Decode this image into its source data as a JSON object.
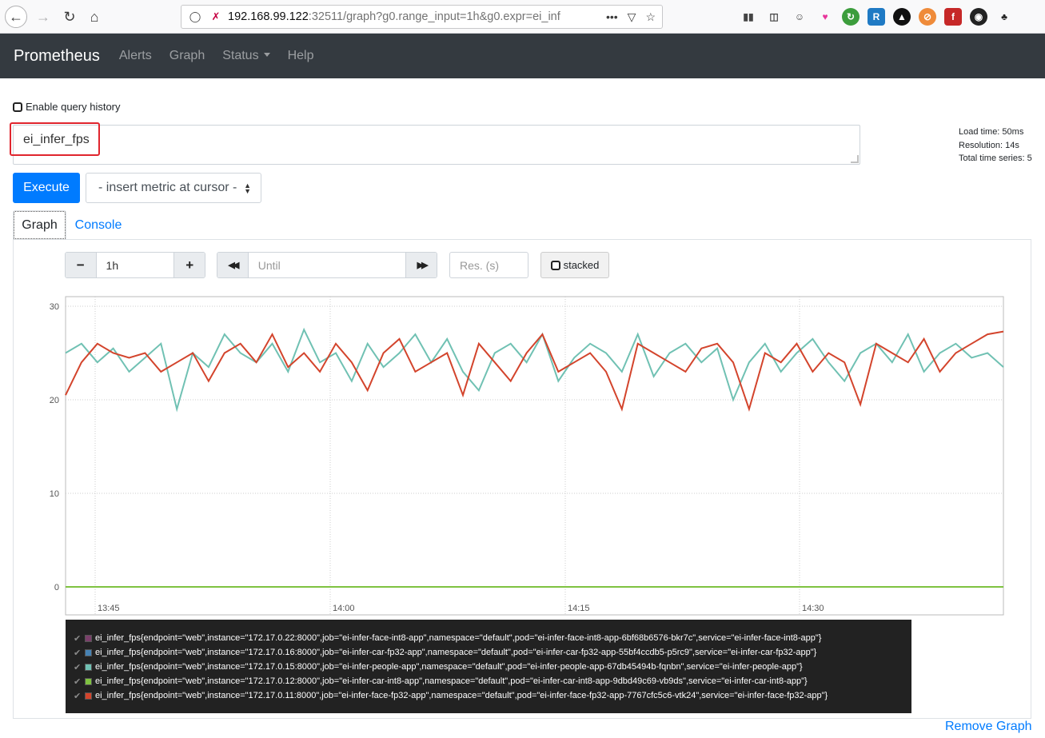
{
  "browser": {
    "url_host": "192.168.99.122",
    "url_rest": ":32511/graph?g0.range_input=1h&g0.expr=ei_inf"
  },
  "navbar": {
    "brand": "Prometheus",
    "links": [
      "Alerts",
      "Graph",
      "Status",
      "Help"
    ]
  },
  "query": {
    "history_label": "Enable query history",
    "expression": "ei_infer_fps",
    "stats": {
      "load_time": "Load time: 50ms",
      "resolution": "Resolution: 14s",
      "total_series": "Total time series: 5"
    },
    "execute_label": "Execute",
    "metric_select": "- insert metric at cursor -"
  },
  "tabs": {
    "graph": "Graph",
    "console": "Console"
  },
  "controls": {
    "minus": "−",
    "range": "1h",
    "plus": "+",
    "rewind": "◀◀",
    "until_placeholder": "Until",
    "forward": "▶▶",
    "res_placeholder": "Res. (s)",
    "stacked_label": "stacked"
  },
  "chart_data": {
    "type": "line",
    "ylim": [
      0,
      30
    ],
    "yticks": [
      "0",
      "10",
      "20",
      "30"
    ],
    "xticks": [
      "13:45",
      "14:00",
      "14:15",
      "14:30"
    ],
    "series": [
      {
        "name": "face-int8",
        "color": "#7b3f6b",
        "values": [
          0,
          0,
          0,
          0,
          0,
          0,
          0,
          0,
          0,
          0,
          0,
          0,
          0,
          0,
          0,
          0,
          0,
          0,
          0,
          0
        ]
      },
      {
        "name": "car-fp32",
        "color": "#4682b4",
        "values": [
          0,
          0,
          0,
          0,
          0,
          0,
          0,
          0,
          0,
          0,
          0,
          0,
          0,
          0,
          0,
          0,
          0,
          0,
          0,
          0
        ]
      },
      {
        "name": "people",
        "color": "#70c1b3",
        "values": [
          25,
          26,
          24,
          25.5,
          23,
          24.5,
          26,
          19,
          25,
          23.5,
          27,
          25,
          24,
          26,
          23,
          27.5,
          24,
          25,
          22,
          26,
          23.5,
          25,
          27,
          24,
          26.5,
          23,
          21,
          25,
          26,
          24,
          27,
          22,
          24.5,
          26,
          25,
          23,
          27,
          22.5,
          25,
          26,
          24,
          25.5,
          20,
          24,
          26,
          23,
          25,
          26.5,
          24,
          22,
          25,
          26,
          24,
          27,
          23,
          25,
          26,
          24.5,
          25,
          23.5
        ]
      },
      {
        "name": "car-int8",
        "color": "#7fc241",
        "values": [
          0,
          0,
          0,
          0,
          0,
          0,
          0,
          0,
          0,
          0,
          0,
          0,
          0,
          0,
          0,
          0,
          0,
          0,
          0,
          0
        ]
      },
      {
        "name": "face-fp32",
        "color": "#d3442c",
        "values": [
          20.5,
          24,
          26,
          25,
          24.5,
          25,
          23,
          24,
          25,
          22,
          25,
          26,
          24,
          27,
          23.5,
          25,
          23,
          26,
          24,
          21,
          25,
          26.5,
          23,
          24,
          25,
          20.5,
          26,
          24,
          22,
          25,
          27,
          23,
          24,
          25,
          23,
          19,
          26,
          25,
          24,
          23,
          25.5,
          26,
          24,
          19,
          25,
          24,
          26,
          23,
          25,
          24,
          19.5,
          26,
          25,
          24,
          26.5,
          23,
          25,
          26,
          27,
          27.3
        ]
      }
    ]
  },
  "legend": [
    {
      "color": "#7b3f6b",
      "label": "ei_infer_fps{endpoint=\"web\",instance=\"172.17.0.22:8000\",job=\"ei-infer-face-int8-app\",namespace=\"default\",pod=\"ei-infer-face-int8-app-6bf68b6576-bkr7c\",service=\"ei-infer-face-int8-app\"}"
    },
    {
      "color": "#4682b4",
      "label": "ei_infer_fps{endpoint=\"web\",instance=\"172.17.0.16:8000\",job=\"ei-infer-car-fp32-app\",namespace=\"default\",pod=\"ei-infer-car-fp32-app-55bf4ccdb5-p5rc9\",service=\"ei-infer-car-fp32-app\"}"
    },
    {
      "color": "#70c1b3",
      "label": "ei_infer_fps{endpoint=\"web\",instance=\"172.17.0.15:8000\",job=\"ei-infer-people-app\",namespace=\"default\",pod=\"ei-infer-people-app-67db45494b-fqnbn\",service=\"ei-infer-people-app\"}"
    },
    {
      "color": "#7fc241",
      "label": "ei_infer_fps{endpoint=\"web\",instance=\"172.17.0.12:8000\",job=\"ei-infer-car-int8-app\",namespace=\"default\",pod=\"ei-infer-car-int8-app-9dbd49c69-vb9ds\",service=\"ei-infer-car-int8-app\"}"
    },
    {
      "color": "#d3442c",
      "label": "ei_infer_fps{endpoint=\"web\",instance=\"172.17.0.11:8000\",job=\"ei-infer-face-fp32-app\",namespace=\"default\",pod=\"ei-infer-face-fp32-app-7767cfc5c6-vtk24\",service=\"ei-infer-face-fp32-app\"}"
    }
  ],
  "remove_graph": "Remove Graph"
}
